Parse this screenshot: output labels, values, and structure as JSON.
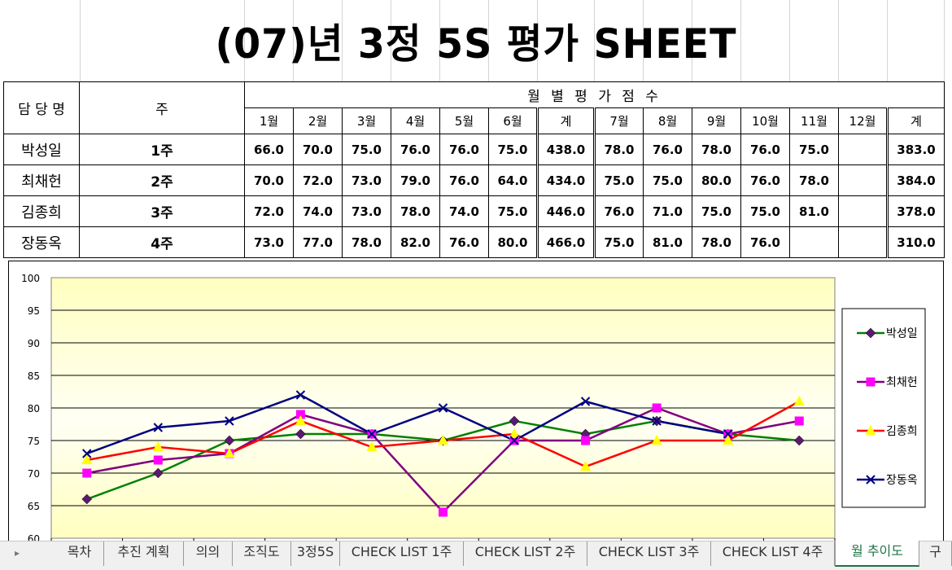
{
  "title": "(07)년 3정 5S 평가 SHEET",
  "table": {
    "col_person": "담 당 명",
    "col_week": "주",
    "col_monthly": "월 별 평 가 점 수",
    "months_h1": [
      "1월",
      "2월",
      "3월",
      "4월",
      "5월",
      "6월"
    ],
    "sum_label_1": "계",
    "months_h2": [
      "7월",
      "8월",
      "9월",
      "10월",
      "11월",
      "12월"
    ],
    "sum_label_2": "계",
    "rows": [
      {
        "name": "박성일",
        "week": "1주",
        "h1": [
          "66.0",
          "70.0",
          "75.0",
          "76.0",
          "76.0",
          "75.0"
        ],
        "sum1": "438.0",
        "h2": [
          "78.0",
          "76.0",
          "78.0",
          "76.0",
          "75.0",
          ""
        ],
        "sum2": "383.0"
      },
      {
        "name": "최채헌",
        "week": "2주",
        "h1": [
          "70.0",
          "72.0",
          "73.0",
          "79.0",
          "76.0",
          "64.0"
        ],
        "sum1": "434.0",
        "h2": [
          "75.0",
          "75.0",
          "80.0",
          "76.0",
          "78.0",
          ""
        ],
        "sum2": "384.0"
      },
      {
        "name": "김종희",
        "week": "3주",
        "h1": [
          "72.0",
          "74.0",
          "73.0",
          "78.0",
          "74.0",
          "75.0"
        ],
        "sum1": "446.0",
        "h2": [
          "76.0",
          "71.0",
          "75.0",
          "75.0",
          "81.0",
          ""
        ],
        "sum2": "378.0"
      },
      {
        "name": "장동옥",
        "week": "4주",
        "h1": [
          "73.0",
          "77.0",
          "78.0",
          "82.0",
          "76.0",
          "80.0"
        ],
        "sum1": "466.0",
        "h2": [
          "75.0",
          "81.0",
          "78.0",
          "76.0",
          "",
          ""
        ],
        "sum2": "310.0"
      }
    ]
  },
  "chart_data": {
    "type": "line",
    "x": [
      1,
      2,
      3,
      4,
      5,
      6,
      7,
      8,
      9,
      10,
      11
    ],
    "ylim": [
      60,
      100
    ],
    "yticks": [
      "100",
      "95",
      "90",
      "85",
      "80",
      "75",
      "70",
      "65",
      "60"
    ],
    "grid": true,
    "legend_position": "right",
    "plot_background": "#ffffc0",
    "series": [
      {
        "name": "박성일",
        "color": "#008000",
        "marker": "diamond",
        "marker_color": "#5a1a6e",
        "values": [
          66,
          70,
          75,
          76,
          76,
          75,
          78,
          76,
          78,
          76,
          75
        ]
      },
      {
        "name": "최채헌",
        "color": "#800080",
        "marker": "square",
        "marker_color": "#ff00ff",
        "values": [
          70,
          72,
          73,
          79,
          76,
          64,
          75,
          75,
          80,
          76,
          78
        ]
      },
      {
        "name": "김종희",
        "color": "#ff0000",
        "marker": "triangle",
        "marker_color": "#ffff00",
        "values": [
          72,
          74,
          73,
          78,
          74,
          75,
          76,
          71,
          75,
          75,
          81
        ]
      },
      {
        "name": "장동옥",
        "color": "#000080",
        "marker": "x",
        "marker_color": "#000080",
        "values": [
          73,
          77,
          78,
          82,
          76,
          80,
          75,
          81,
          78,
          76,
          null
        ]
      }
    ]
  },
  "tabs": [
    {
      "label": "목차",
      "active": false
    },
    {
      "label": "추진 계획",
      "active": false
    },
    {
      "label": "의의",
      "active": false
    },
    {
      "label": "조직도",
      "active": false
    },
    {
      "label": "3정5S",
      "active": false
    },
    {
      "label": "CHECK LIST 1주",
      "active": false
    },
    {
      "label": "CHECK LIST 2주",
      "active": false
    },
    {
      "label": "CHECK LIST 3주",
      "active": false
    },
    {
      "label": "CHECK LIST 4주",
      "active": false
    },
    {
      "label": "월 추이도",
      "active": true
    },
    {
      "label": "구",
      "active": false
    }
  ]
}
